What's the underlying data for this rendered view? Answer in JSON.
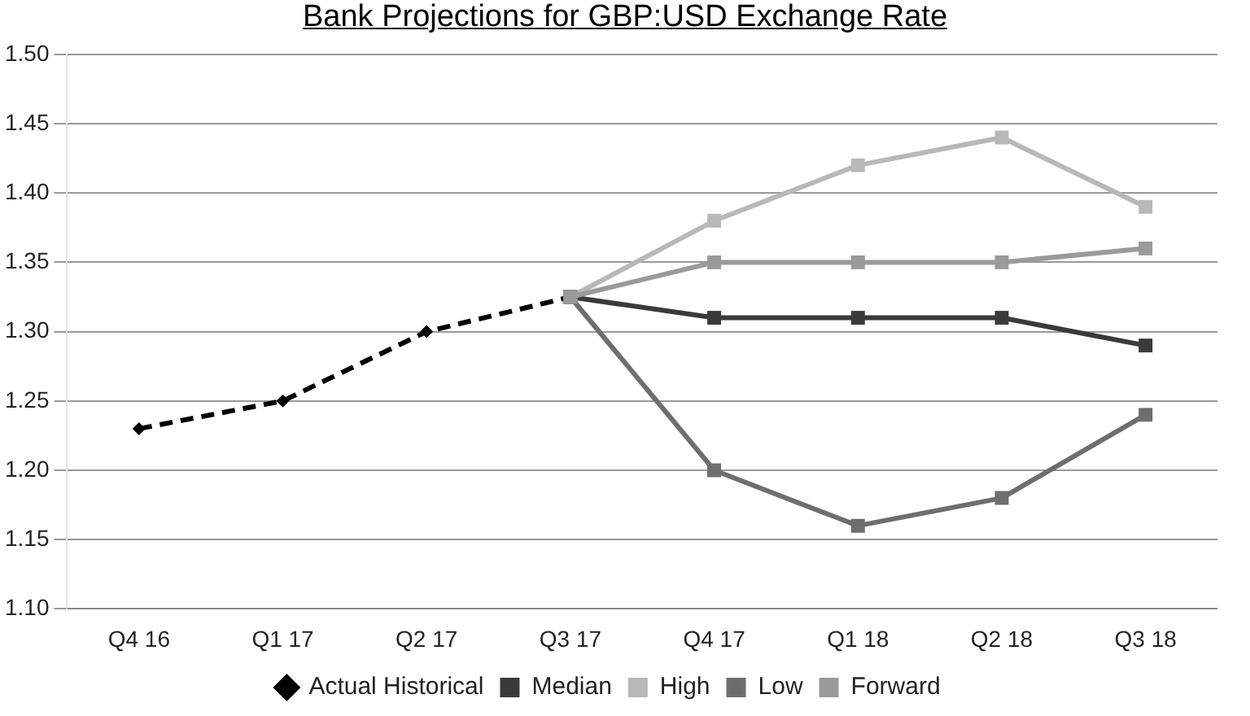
{
  "chart_data": {
    "type": "line",
    "title": "Bank Projections for GBP:USD Exchange Rate",
    "categories": [
      "Q4 16",
      "Q1 17",
      "Q2 17",
      "Q3 17",
      "Q4 17",
      "Q1 18",
      "Q2 18",
      "Q3 18"
    ],
    "series": [
      {
        "name": "Actual Historical",
        "color": "#000000",
        "line_style": "dashed",
        "marker": "diamond",
        "values": [
          1.23,
          1.25,
          1.3,
          1.325,
          null,
          null,
          null,
          null
        ]
      },
      {
        "name": "Median",
        "color": "#3a3a3a",
        "line_style": "solid",
        "marker": "square",
        "values": [
          null,
          null,
          null,
          1.325,
          1.31,
          1.31,
          1.31,
          1.29
        ]
      },
      {
        "name": "High",
        "color": "#b8b8b8",
        "line_style": "solid",
        "marker": "square",
        "values": [
          null,
          null,
          null,
          1.325,
          1.38,
          1.42,
          1.44,
          1.39
        ]
      },
      {
        "name": "Low",
        "color": "#6e6e6e",
        "line_style": "solid",
        "marker": "square",
        "values": [
          null,
          null,
          null,
          1.325,
          1.2,
          1.16,
          1.18,
          1.24
        ]
      },
      {
        "name": "Forward",
        "color": "#9a9a9a",
        "line_style": "solid",
        "marker": "square",
        "values": [
          null,
          null,
          null,
          1.325,
          1.35,
          1.35,
          1.35,
          1.36
        ]
      }
    ],
    "ylim": [
      1.1,
      1.5
    ],
    "yticks": [
      {
        "value": 1.1,
        "label": "1.10"
      },
      {
        "value": 1.15,
        "label": "1.15"
      },
      {
        "value": 1.2,
        "label": "1.20"
      },
      {
        "value": 1.25,
        "label": "1.25"
      },
      {
        "value": 1.3,
        "label": "1.30"
      },
      {
        "value": 1.35,
        "label": "1.35"
      },
      {
        "value": 1.4,
        "label": "1.40"
      },
      {
        "value": 1.45,
        "label": "1.45"
      },
      {
        "value": 1.5,
        "label": "1.50"
      }
    ],
    "grid": "y",
    "legend": "bottom"
  }
}
